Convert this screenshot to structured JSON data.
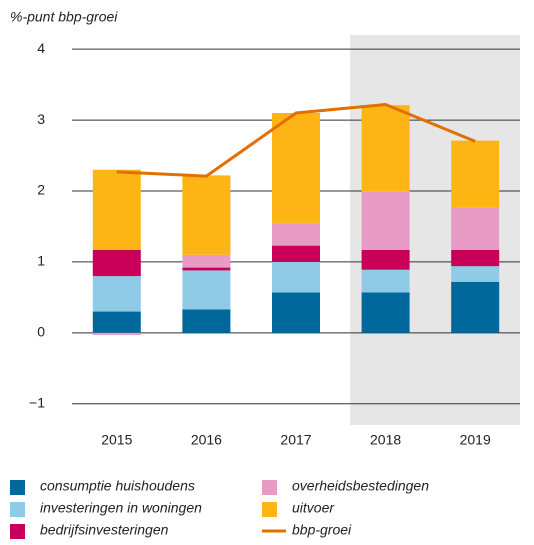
{
  "chart_data": {
    "type": "bar",
    "stacked": true,
    "ylabel": "%-punt bbp-groei",
    "categories": [
      "2015",
      "2016",
      "2017",
      "2018",
      "2019"
    ],
    "series": [
      {
        "name": "consumptie huishoudens",
        "color": "#00689d",
        "values": [
          0.3,
          0.33,
          0.57,
          0.57,
          0.72
        ]
      },
      {
        "name": "investeringen in woningen",
        "color": "#8fcae7",
        "values": [
          0.5,
          0.55,
          0.43,
          0.32,
          0.22
        ]
      },
      {
        "name": "bedrijfsinvesteringen",
        "color": "#c8005a",
        "values": [
          0.37,
          0.04,
          0.23,
          0.28,
          0.23
        ]
      },
      {
        "name": "overheidsbestedingen",
        "color": "#e89cc5",
        "values": [
          -0.03,
          0.18,
          0.32,
          0.82,
          0.6
        ]
      },
      {
        "name": "uitvoer",
        "color": "#fdb515",
        "values": [
          1.13,
          1.12,
          1.55,
          1.22,
          0.94
        ]
      },
      {
        "name": "bbp-groei",
        "color": "#e17000",
        "type": "line",
        "values": [
          2.27,
          2.21,
          3.1,
          3.22,
          2.7
        ]
      }
    ],
    "ylim": [
      -1.3,
      4.2
    ],
    "yticks": [
      {
        "value": -1,
        "label": "−1"
      },
      0,
      1,
      2,
      3,
      4
    ],
    "grid": true
  }
}
